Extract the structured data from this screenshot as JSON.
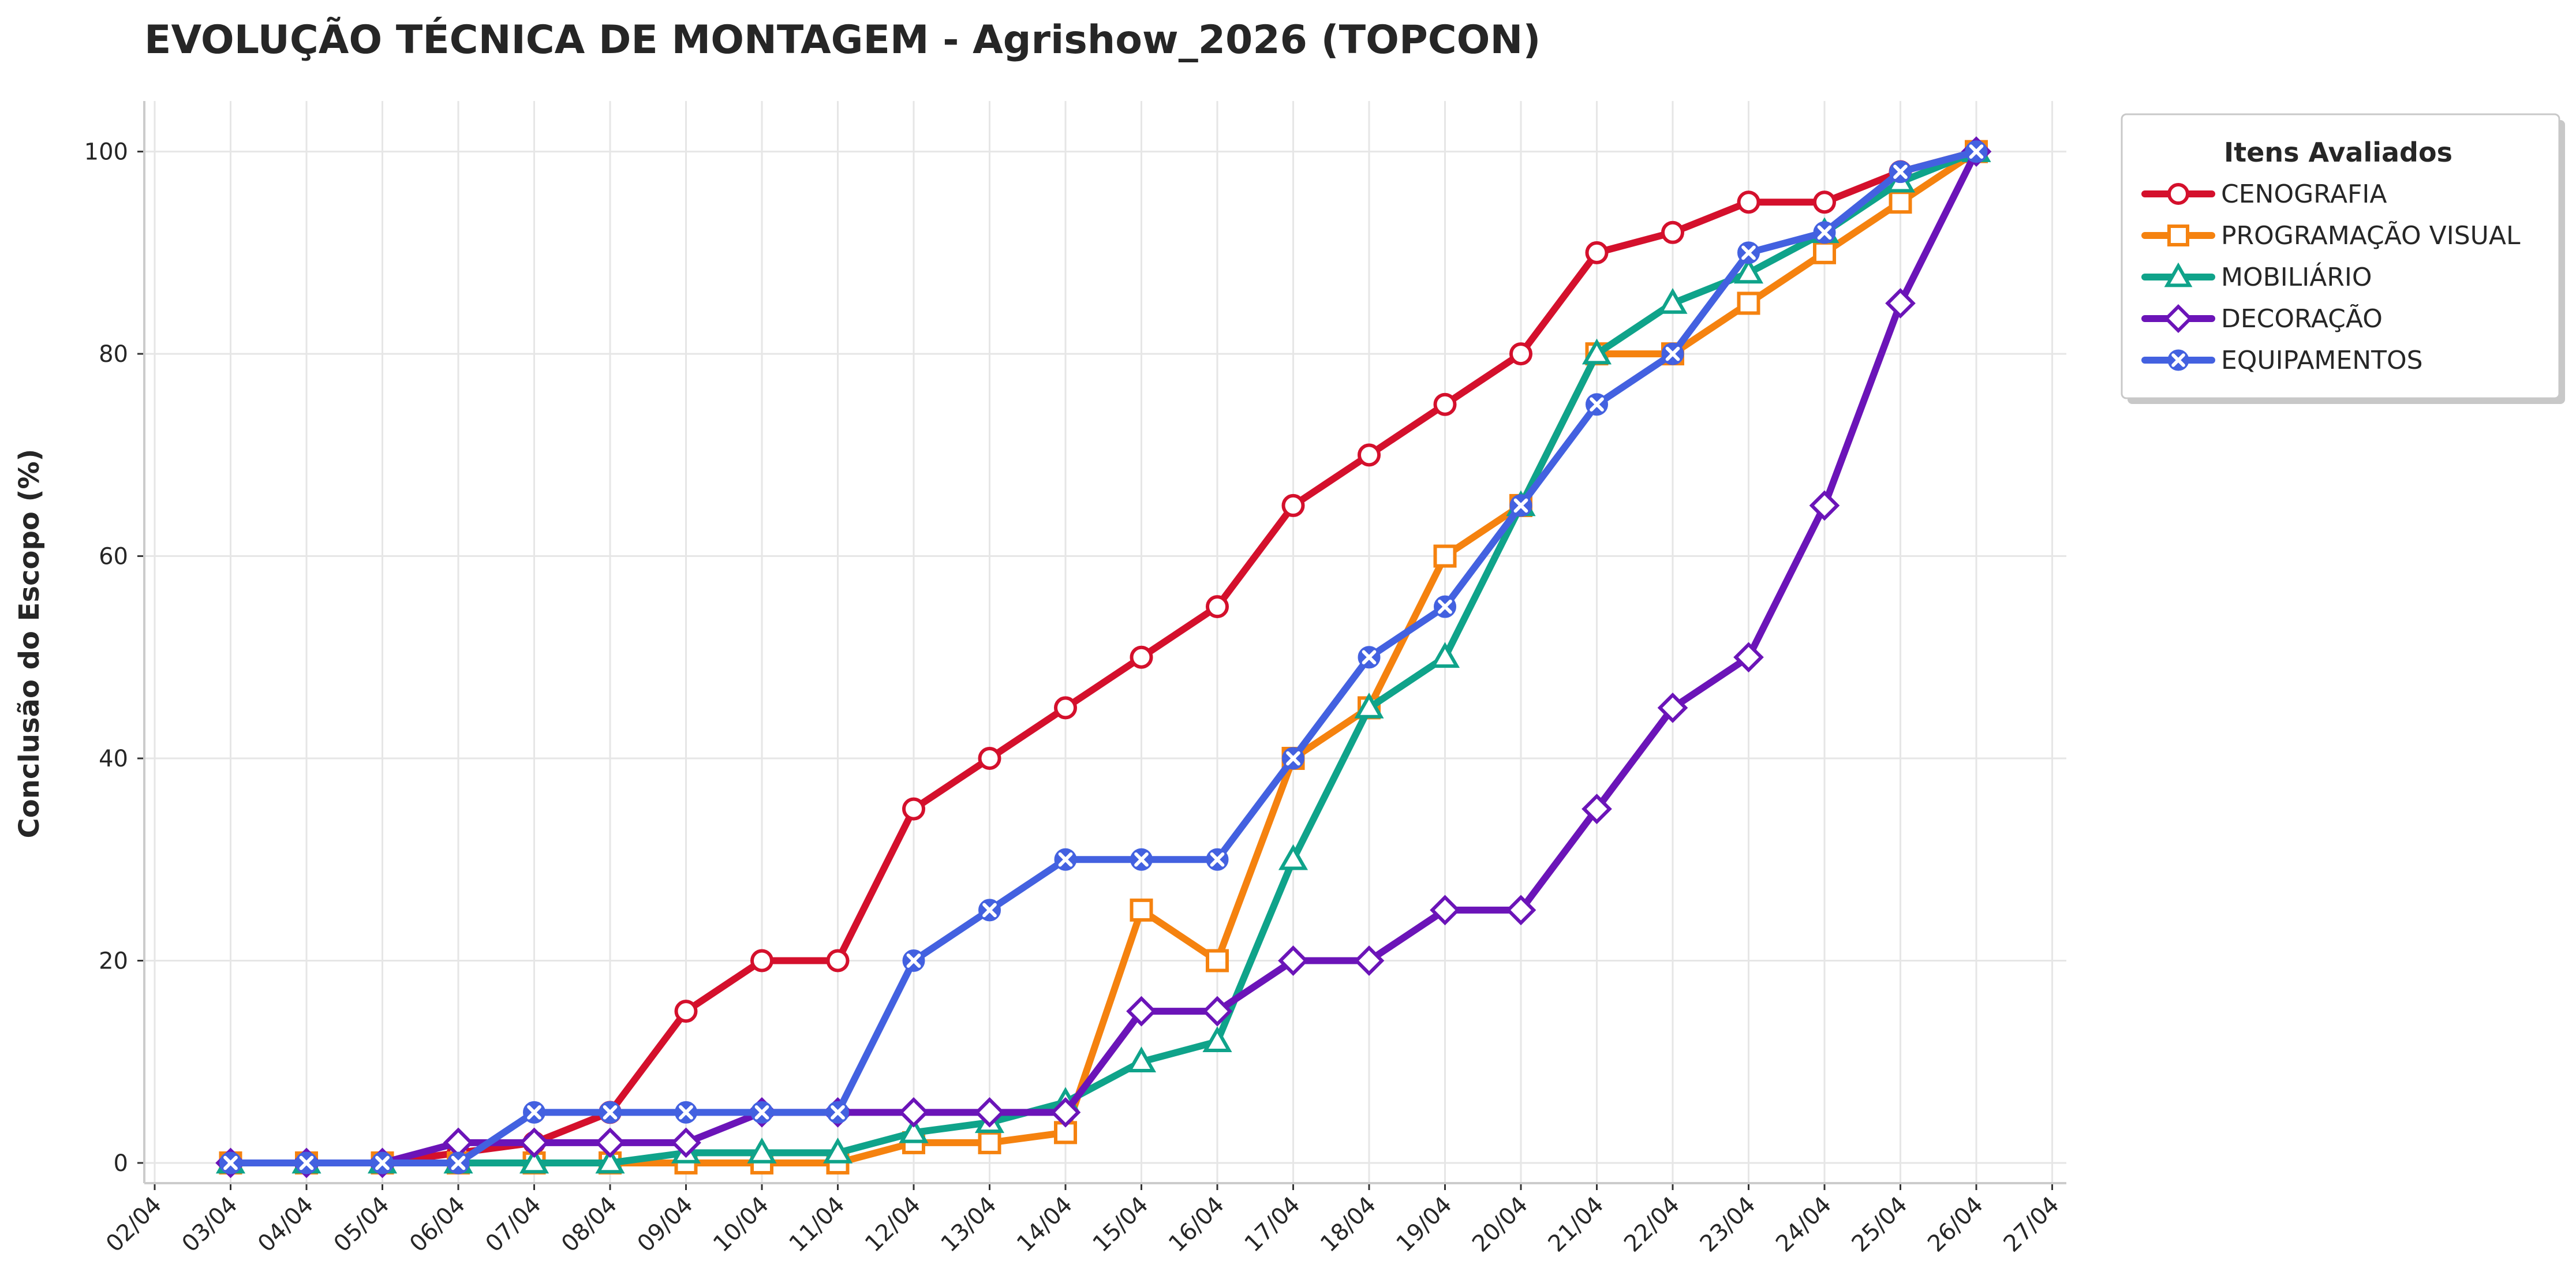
{
  "chart_data": {
    "type": "line",
    "title": "EVOLUÇÃO TÉCNICA DE MONTAGEM - Agrishow_2026 (TOPCON)",
    "xlabel": "",
    "ylabel": "Conclusão do Escopo (%)",
    "x_ticks": [
      "02/04",
      "03/04",
      "04/04",
      "05/04",
      "06/04",
      "07/04",
      "08/04",
      "09/04",
      "10/04",
      "11/04",
      "12/04",
      "13/04",
      "14/04",
      "15/04",
      "16/04",
      "17/04",
      "18/04",
      "19/04",
      "20/04",
      "21/04",
      "22/04",
      "23/04",
      "24/04",
      "25/04",
      "26/04",
      "27/04"
    ],
    "x": [
      "03/04",
      "04/04",
      "05/04",
      "06/04",
      "07/04",
      "08/04",
      "09/04",
      "10/04",
      "11/04",
      "12/04",
      "13/04",
      "14/04",
      "15/04",
      "16/04",
      "17/04",
      "18/04",
      "19/04",
      "20/04",
      "21/04",
      "22/04",
      "23/04",
      "24/04",
      "25/04",
      "26/04"
    ],
    "y_ticks": [
      0,
      20,
      40,
      60,
      80,
      100
    ],
    "ylim": [
      -2,
      105
    ],
    "grid": true,
    "legend": {
      "title": "Itens Avaliados",
      "placement": "outside-top-right"
    },
    "series": [
      {
        "name": "CENOGRAFIA",
        "color": "#d4102c",
        "marker": "circle",
        "values": [
          0,
          0,
          0,
          1,
          2,
          5,
          15,
          20,
          20,
          35,
          40,
          45,
          50,
          55,
          65,
          70,
          75,
          80,
          90,
          92,
          95,
          95,
          98,
          100
        ]
      },
      {
        "name": "PROGRAMAÇÃO VISUAL",
        "color": "#f5820f",
        "marker": "square",
        "values": [
          0,
          0,
          0,
          0,
          0,
          0,
          0,
          0,
          0,
          2,
          2,
          3,
          25,
          20,
          40,
          45,
          60,
          65,
          80,
          80,
          85,
          90,
          95,
          100
        ]
      },
      {
        "name": "MOBILIÁRIO",
        "color": "#0fa38a",
        "marker": "triangle",
        "values": [
          0,
          0,
          0,
          0,
          0,
          0,
          1,
          1,
          1,
          3,
          4,
          6,
          10,
          12,
          30,
          45,
          50,
          65,
          80,
          85,
          88,
          92,
          97,
          100
        ]
      },
      {
        "name": "DECORAÇÃO",
        "color": "#6b14b8",
        "marker": "diamond",
        "values": [
          0,
          0,
          0,
          2,
          2,
          2,
          2,
          5,
          5,
          5,
          5,
          5,
          15,
          15,
          20,
          20,
          25,
          25,
          35,
          45,
          50,
          65,
          85,
          100
        ]
      },
      {
        "name": "EQUIPAMENTOS",
        "color": "#4361e0",
        "marker": "x",
        "values": [
          0,
          0,
          0,
          0,
          5,
          5,
          5,
          5,
          5,
          20,
          25,
          30,
          30,
          30,
          40,
          50,
          55,
          65,
          75,
          80,
          90,
          92,
          98,
          100
        ]
      }
    ]
  }
}
